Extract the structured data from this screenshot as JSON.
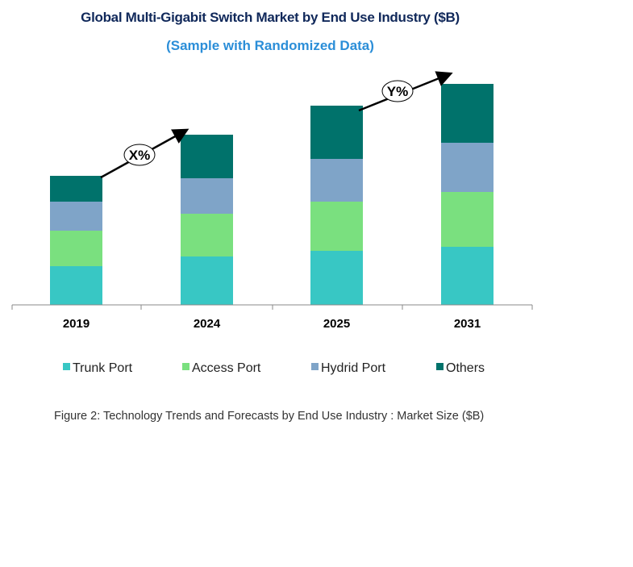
{
  "chart_data": {
    "type": "bar",
    "stacked": true,
    "title": "Global Multi-Gigabit Switch Market by End Use Industry ($B)",
    "subtitle": "(Sample with Randomized Data)",
    "xlabel": "",
    "ylabel": "",
    "categories": [
      "2019",
      "2024",
      "2025",
      "2031"
    ],
    "ylim": [
      0,
      300
    ],
    "y_axis_visible": false,
    "grid": false,
    "legend_position": "bottom",
    "series": [
      {
        "name": "Trunk Port",
        "color": "#38c7c4",
        "values": [
          48,
          60,
          67,
          72
        ]
      },
      {
        "name": "Access Port",
        "color": "#7ae07f",
        "values": [
          44,
          53,
          61,
          68
        ]
      },
      {
        "name": "Hydrid Port",
        "color": "#7fa4c8",
        "values": [
          36,
          44,
          53,
          61
        ]
      },
      {
        "name": "Others",
        "color": "#00726b",
        "values": [
          32,
          54,
          66,
          73
        ]
      }
    ],
    "annotations": [
      {
        "text": "X%",
        "from": "2019",
        "to": "2024"
      },
      {
        "text": "Y%",
        "from": "2025",
        "to": "2031"
      }
    ]
  },
  "caption": "Figure 2: Technology  Trends  and Forecasts by  End Use Industry  : Market Size ($B)"
}
